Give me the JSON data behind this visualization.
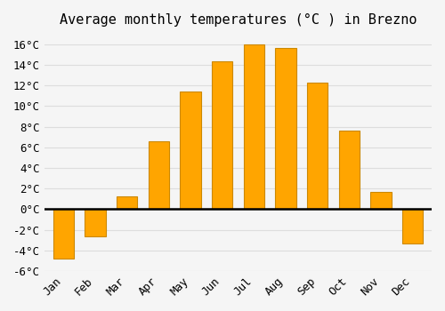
{
  "months": [
    "Jan",
    "Feb",
    "Mar",
    "Apr",
    "May",
    "Jun",
    "Jul",
    "Aug",
    "Sep",
    "Oct",
    "Nov",
    "Dec"
  ],
  "values": [
    -4.8,
    -2.6,
    1.2,
    6.6,
    11.4,
    14.3,
    16.0,
    15.6,
    12.3,
    7.6,
    1.7,
    -3.3
  ],
  "bar_color_face": "#FFA500",
  "bar_color_edge": "#CC8800",
  "title": "Average monthly temperatures (°C ) in Brezno",
  "ylim": [
    -6,
    17
  ],
  "yticks": [
    -6,
    -4,
    -2,
    0,
    2,
    4,
    6,
    8,
    10,
    12,
    14,
    16
  ],
  "ytick_labels": [
    "-6°C",
    "-4°C",
    "-2°C",
    "0°C",
    "2°C",
    "4°C",
    "6°C",
    "8°C",
    "10°C",
    "12°C",
    "14°C",
    "16°C"
  ],
  "background_color": "#f5f5f5",
  "grid_color": "#dddddd",
  "title_fontsize": 11,
  "tick_fontsize": 9,
  "zero_line_color": "#000000"
}
